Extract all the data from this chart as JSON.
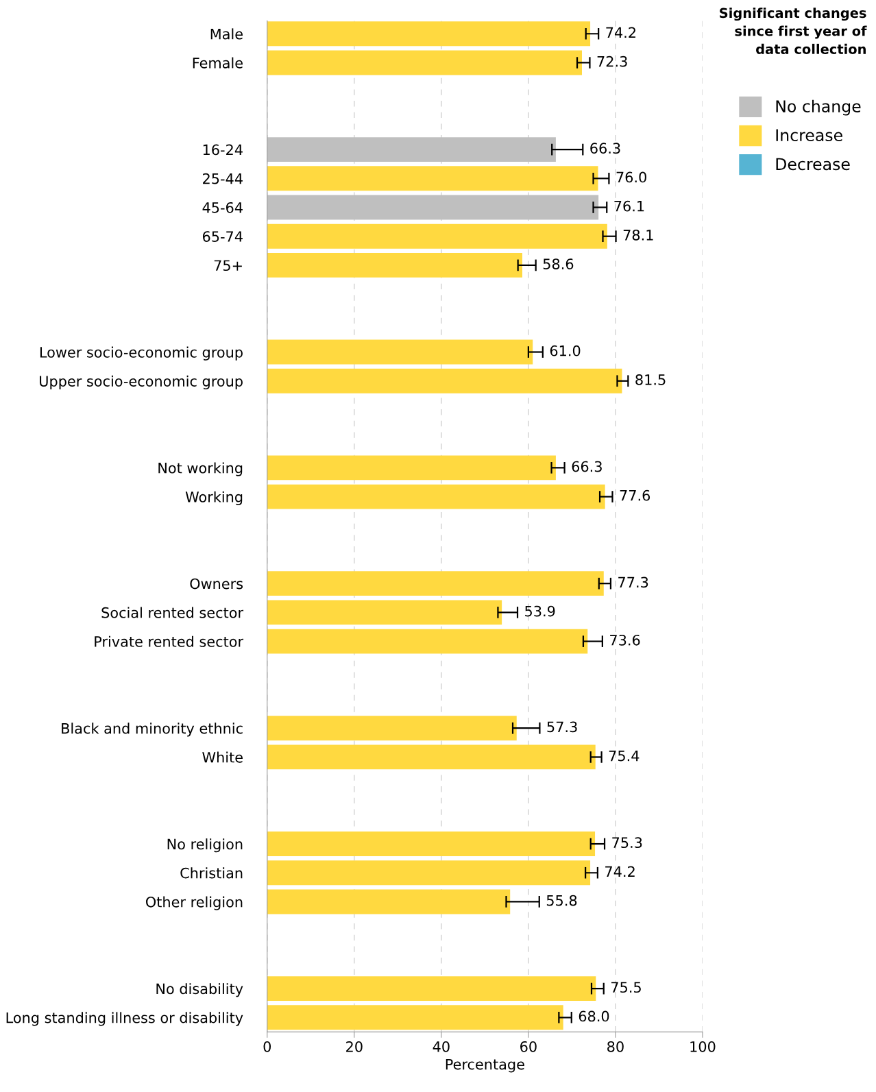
{
  "chart_data": {
    "type": "bar",
    "orientation": "horizontal",
    "legend_title": "Significant changes since first year of data collection",
    "xlabel": "Percentage",
    "xlim": [
      0,
      100
    ],
    "xticks": [
      0,
      20,
      40,
      60,
      80,
      100
    ],
    "grid": "x",
    "legend": "top right",
    "categories": [
      "Male",
      "Female",
      null,
      null,
      "16-24",
      "25-44",
      "45-64",
      "65-74",
      "75+",
      null,
      null,
      "Lower socio-economic group",
      "Upper socio-economic group",
      null,
      null,
      "Not working",
      "Working",
      null,
      null,
      "Owners",
      "Social rented sector",
      "Private rented sector",
      null,
      null,
      "Black and minority ethnic",
      "White",
      null,
      null,
      "No religion",
      "Christian",
      "Other religion",
      null,
      null,
      "No disability",
      "Long standing illness or disability"
    ],
    "series": [
      {
        "name": "No change",
        "color": "#bfbfbf",
        "values": [
          null,
          null,
          null,
          null,
          66.3,
          null,
          76.1,
          null,
          null,
          null,
          null,
          null,
          null,
          null,
          null,
          null,
          null,
          null,
          null,
          null,
          null,
          null,
          null,
          null,
          null,
          null,
          null,
          null,
          null,
          null,
          null,
          null,
          null,
          null,
          null
        ],
        "value_labels": [
          null,
          null,
          null,
          null,
          "66.3",
          null,
          "76.1",
          null,
          null,
          null,
          null,
          null,
          null,
          null,
          null,
          null,
          null,
          null,
          null,
          null,
          null,
          null,
          null,
          null,
          null,
          null,
          null,
          null,
          null,
          null,
          null,
          null,
          null,
          null,
          null
        ],
        "errors": [
          null,
          null,
          null,
          null,
          [
            65.4,
            72.5
          ],
          null,
          [
            74.9,
            78.0
          ],
          null,
          null,
          null,
          null,
          null,
          null,
          null,
          null,
          null,
          null,
          null,
          null,
          null,
          null,
          null,
          null,
          null,
          null,
          null,
          null,
          null,
          null,
          null,
          null,
          null,
          null,
          null,
          null
        ]
      },
      {
        "name": "Increase",
        "color": "#ffd940",
        "values": [
          74.2,
          72.3,
          null,
          null,
          null,
          76.0,
          null,
          78.1,
          58.6,
          null,
          null,
          61.0,
          81.5,
          null,
          null,
          66.3,
          77.6,
          null,
          null,
          77.3,
          53.9,
          73.6,
          null,
          null,
          57.3,
          75.4,
          null,
          null,
          75.3,
          74.2,
          55.8,
          null,
          null,
          75.5,
          68.0
        ],
        "value_labels": [
          "74.2",
          "72.3",
          null,
          null,
          null,
          "76.0",
          null,
          "78.1",
          "58.6",
          null,
          null,
          "61.0",
          "81.5",
          null,
          null,
          "66.3",
          "77.6",
          null,
          null,
          "77.3",
          "53.9",
          "73.6",
          null,
          null,
          "57.3",
          "75.4",
          null,
          null,
          "75.3",
          "74.2",
          "55.8",
          null,
          null,
          "75.5",
          "68.0"
        ],
        "errors": [
          [
            73.2,
            76.1
          ],
          [
            71.2,
            74.1
          ],
          null,
          null,
          null,
          [
            74.9,
            78.5
          ],
          null,
          [
            77.1,
            80.1
          ],
          [
            57.6,
            61.7
          ],
          null,
          null,
          [
            60.0,
            63.3
          ],
          [
            80.4,
            82.9
          ],
          null,
          null,
          [
            65.3,
            68.3
          ],
          [
            76.4,
            79.3
          ],
          null,
          null,
          [
            76.2,
            78.9
          ],
          [
            53.0,
            57.5
          ],
          [
            72.6,
            77.0
          ],
          null,
          null,
          [
            56.4,
            62.6
          ],
          [
            74.3,
            76.8
          ],
          null,
          null,
          [
            74.3,
            77.5
          ],
          [
            73.1,
            75.9
          ],
          [
            54.9,
            62.5
          ],
          null,
          null,
          [
            74.5,
            77.3
          ],
          [
            67.0,
            69.9
          ]
        ]
      },
      {
        "name": "Decrease",
        "color": "#56b4d3",
        "values": [
          null,
          null,
          null,
          null,
          null,
          null,
          null,
          null,
          null,
          null,
          null,
          null,
          null,
          null,
          null,
          null,
          null,
          null,
          null,
          null,
          null,
          null,
          null,
          null,
          null,
          null,
          null,
          null,
          null,
          null,
          null,
          null,
          null,
          null,
          null
        ]
      }
    ]
  }
}
